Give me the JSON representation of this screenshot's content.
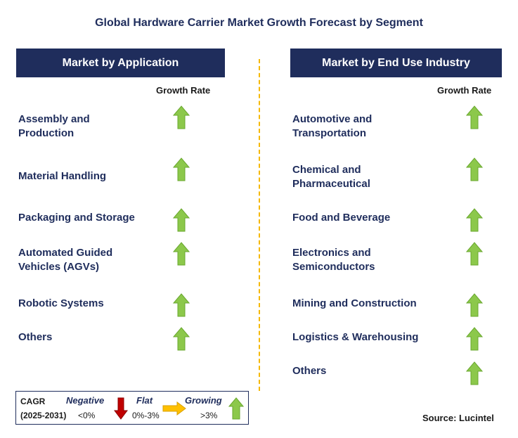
{
  "title": "Global Hardware Carrier Market Growth Forecast by Segment",
  "left_panel": {
    "header": "Market by Application",
    "growth_label": "Growth Rate",
    "items": [
      {
        "label": "Assembly and\nProduction",
        "trend": "growing"
      },
      {
        "label": "Material Handling",
        "trend": "growing"
      },
      {
        "label": "Packaging and Storage",
        "trend": "growing"
      },
      {
        "label": "Automated Guided\nVehicles (AGVs)",
        "trend": "growing"
      },
      {
        "label": "Robotic Systems",
        "trend": "growing"
      },
      {
        "label": "Others",
        "trend": "growing"
      }
    ]
  },
  "right_panel": {
    "header": "Market by End Use Industry",
    "growth_label": "Growth Rate",
    "items": [
      {
        "label": "Automotive and\nTransportation",
        "trend": "growing"
      },
      {
        "label": "Chemical and\nPharmaceutical",
        "trend": "growing"
      },
      {
        "label": "Food and Beverage",
        "trend": "growing"
      },
      {
        "label": "Electronics and\nSemiconductors",
        "trend": "growing"
      },
      {
        "label": "Mining and Construction",
        "trend": "growing"
      },
      {
        "label": "Logistics & Warehousing",
        "trend": "growing"
      },
      {
        "label": "Others",
        "trend": "growing"
      }
    ]
  },
  "legend": {
    "cagr_label": "CAGR",
    "period": "(2025-2031)",
    "negative": {
      "label": "Negative",
      "range": "<0%"
    },
    "flat": {
      "label": "Flat",
      "range": "0%-3%"
    },
    "growing": {
      "label": "Growing",
      "range": ">3%"
    }
  },
  "source": "Source: Lucintel",
  "colors": {
    "navy": "#1f2d5c",
    "up_arrow": "#8cc84b",
    "down_arrow": "#c00000",
    "flat_arrow": "#ffc000",
    "divider": "#f5b800"
  }
}
